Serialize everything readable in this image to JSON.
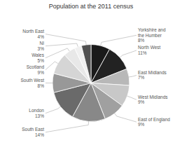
{
  "chart_data": {
    "type": "pie",
    "title": "Population at the 2011 census",
    "categories": [
      "Yorkshire and\nthe Humber",
      "North West",
      "East Midlands",
      "West Midlands",
      "East of England",
      "South East",
      "London",
      "South West",
      "Scotland",
      "Wales",
      "NI",
      "North East"
    ],
    "values": [
      8,
      11,
      7,
      9,
      9,
      14,
      13,
      8,
      9,
      5,
      3,
      4
    ],
    "value_labels": [
      "8%",
      "11%",
      "7%",
      "9%",
      "9%",
      "14%",
      "13%",
      "8%",
      "9%",
      "5%",
      "3%",
      "4%"
    ],
    "colors": [
      "#1a1a1a",
      "#222222",
      "#b8b8b8",
      "#c8c8c8",
      "#a0a0a0",
      "#888888",
      "#6a6a6a",
      "#989898",
      "#d5d5d5",
      "#e8e8e8",
      "#f0f0f0",
      "#505050"
    ],
    "data_labels": true
  }
}
